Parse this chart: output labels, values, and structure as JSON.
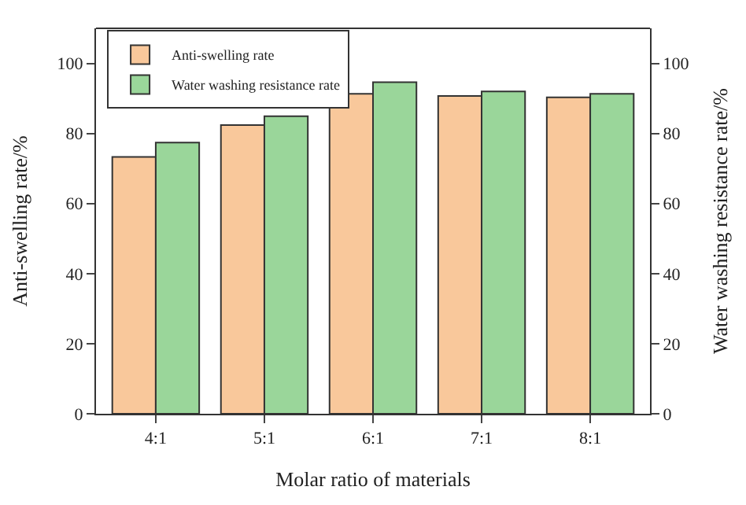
{
  "chart_data": {
    "type": "bar",
    "xlabel": "Molar ratio of materials",
    "ylabel": "Anti-swelling rate/%",
    "y2label": "Water washing resistance rate/%",
    "categories": [
      "4:1",
      "5:1",
      "6:1",
      "7:1",
      "8:1"
    ],
    "series": [
      {
        "name": "Anti-swelling rate",
        "color": "#f9c89b",
        "values": [
          73.3,
          82.4,
          91.3,
          90.7,
          90.3
        ]
      },
      {
        "name": "Water washing resistance rate",
        "color": "#9ad69a",
        "values": [
          77.4,
          84.9,
          94.6,
          92.0,
          91.3
        ]
      }
    ],
    "ylim": [
      0,
      110
    ],
    "yticks": [
      0,
      20,
      40,
      60,
      80,
      100
    ],
    "y2lim": [
      0,
      110
    ],
    "y2ticks": [
      0,
      20,
      40,
      60,
      80,
      100
    ],
    "legend": "top left"
  }
}
